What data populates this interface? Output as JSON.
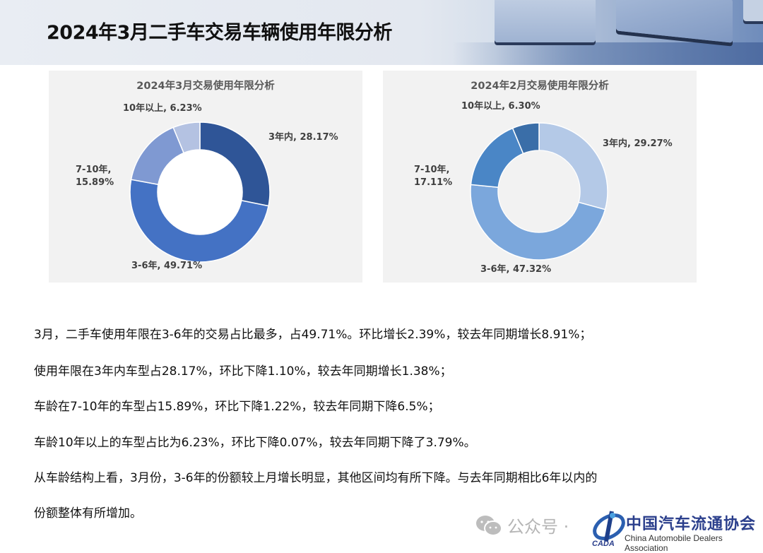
{
  "page": {
    "title": "2024年3月二手车交易车辆使用年限分析"
  },
  "chart_data": [
    {
      "type": "pie",
      "variant": "donut",
      "title": "2024年3月交易使用年限分析",
      "categories": [
        "3年内",
        "3-6年",
        "7-10年",
        "10年以上"
      ],
      "values": [
        28.17,
        49.71,
        15.89,
        6.23
      ],
      "unit": "%",
      "colors": [
        "#2f5597",
        "#4472c4",
        "#7f99d2",
        "#b4c2e2"
      ],
      "labels": [
        "3年内, 28.17%",
        "3-6年, 49.71%",
        "7-10年,",
        "15.89%",
        "10年以上, 6.23%"
      ],
      "legend": "none",
      "data_labels": true
    },
    {
      "type": "pie",
      "variant": "donut",
      "title": "2024年2月交易使用年限分析",
      "categories": [
        "3年内",
        "3-6年",
        "7-10年",
        "10年以上"
      ],
      "values": [
        29.27,
        47.32,
        17.11,
        6.3
      ],
      "unit": "%",
      "colors": [
        "#b4c9e7",
        "#7ba7dc",
        "#4a86c6",
        "#3a6ea8"
      ],
      "labels": [
        "3年内, 29.27%",
        "3-6年, 47.32%",
        "7-10年,",
        "17.11%",
        "10年以上, 6.30%"
      ],
      "legend": "none",
      "data_labels": true
    }
  ],
  "charts": {
    "march": {
      "title": "2024年3月交易使用年限分析",
      "label_3y": "3年内, 28.17%",
      "label_3to6": "3-6年, 49.71%",
      "label_7to10_a": "7-10年,",
      "label_7to10_b": "15.89%",
      "label_10plus": "10年以上, 6.23%"
    },
    "february": {
      "title": "2024年2月交易使用年限分析",
      "label_3y": "3年内, 29.27%",
      "label_3to6": "3-6年, 47.32%",
      "label_7to10_a": "7-10年,",
      "label_7to10_b": "17.11%",
      "label_10plus": "10年以上, 6.30%"
    }
  },
  "analysis": {
    "lines": [
      "3月，二手车使用年限在3-6年的交易占比最多，占49.71%。环比增长2.39%，较去年同期增长8.91%；",
      "使用年限在3年内车型占28.17%，环比下降1.10%，较去年同期增长1.38%；",
      "车龄在7-10年的车型占15.89%，环比下降1.22%，较去年同期下降6.5%；",
      "车龄10年以上的车型占比为6.23%，环比下降0.07%，较去年同期下降了3.79%。",
      "从车龄结构上看，3月份，3-6年的份额较上月增长明显，其他区间均有所下降。与去年同期相比6年以内的",
      "份额整体有所增加。"
    ]
  },
  "watermark": {
    "icon": "wechat-icon",
    "prefix": "公众号 ·",
    "org_cn": "中国汽车流通协会",
    "org_en": "China Automobile Dealers Association",
    "org_abbr": "CADA"
  }
}
